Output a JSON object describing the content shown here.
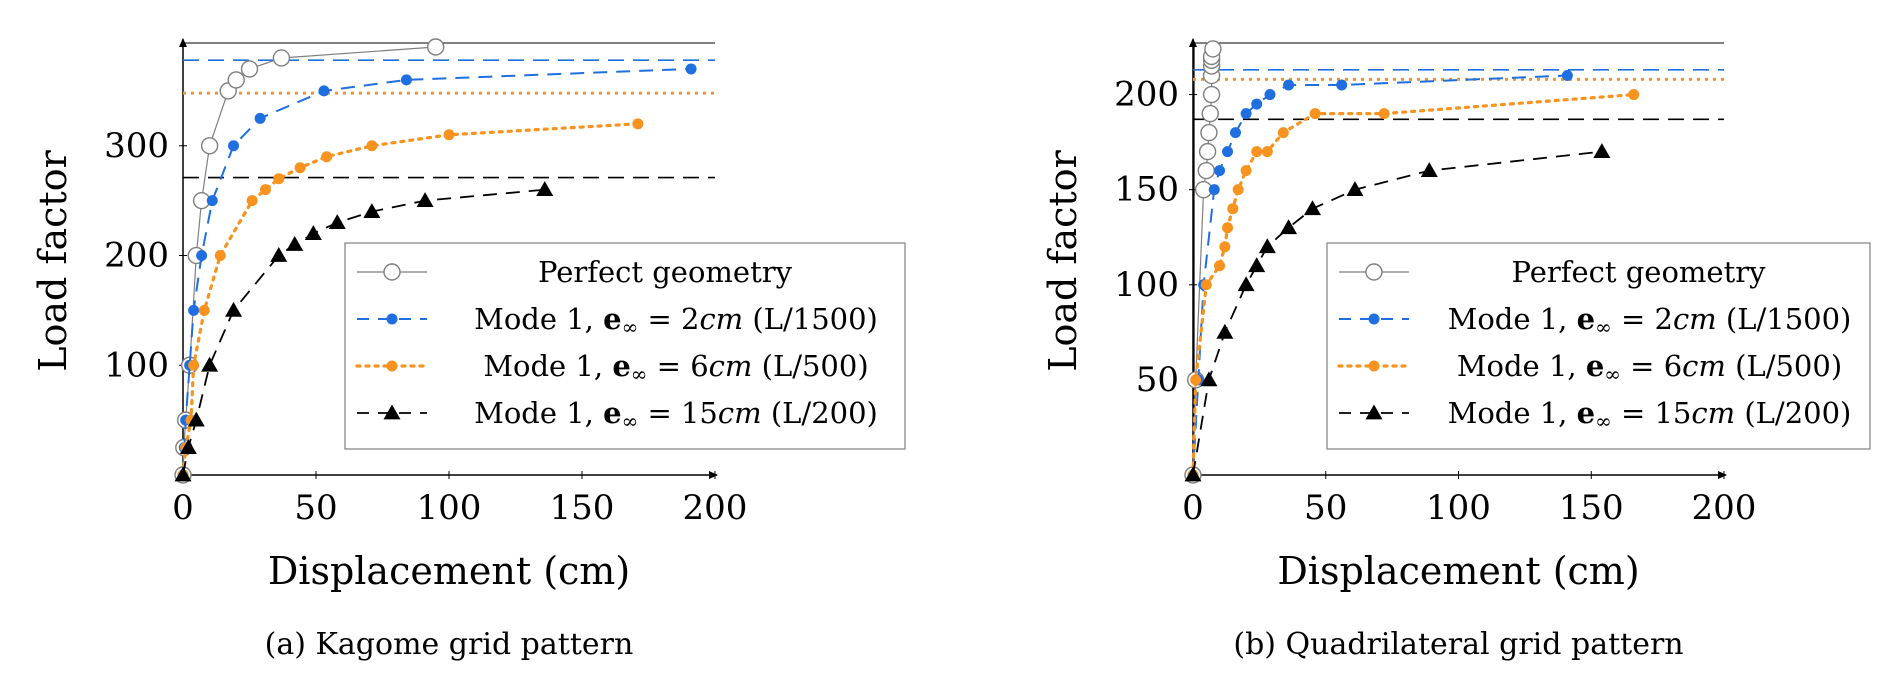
{
  "legend_labels": {
    "perfect": "Perfect geometry",
    "mode_prefix": "Mode 1,",
    "e_symbol": "e",
    "e_sub": "∞",
    "eq": "=",
    "unit": "cm"
  },
  "chart_data": [
    {
      "type": "line",
      "caption": "(a) Kagome grid pattern",
      "xlabel": "Displacement (cm)",
      "ylabel": "Load factor",
      "xlim": [
        0,
        200
      ],
      "ylim": [
        0,
        390
      ],
      "xticks": [
        0,
        50,
        100,
        150,
        200
      ],
      "yticks": [
        100,
        200,
        300
      ],
      "grid": false,
      "legend_position": "bottom-right",
      "series": [
        {
          "key": "perfect",
          "name": "Perfect geometry",
          "color": "#7f7f7f",
          "marker": "open-circle",
          "x": [
            0,
            0.3,
            1,
            2.5,
            5,
            7,
            10,
            17,
            20,
            25,
            37,
            95
          ],
          "y": [
            0,
            25,
            50,
            100,
            200,
            250,
            300,
            350,
            360,
            370,
            380,
            390
          ]
        },
        {
          "key": "e2",
          "name": "Mode 1, e∞ = 2cm (L/1500)",
          "value": "2",
          "ratio": "(L/1500)",
          "color": "#1f6fe0",
          "marker": "dot",
          "x": [
            0,
            0.5,
            1,
            2.5,
            4,
            7,
            11,
            19,
            29,
            53,
            84,
            191
          ],
          "y": [
            0,
            25,
            50,
            100,
            150,
            200,
            250,
            300,
            325,
            350,
            360,
            370
          ],
          "asymptote": 378
        },
        {
          "key": "e6",
          "name": "Mode 1, e∞ = 6cm (L/500)",
          "value": "6",
          "ratio": "(L/500)",
          "color": "#f7931e",
          "marker": "dot",
          "x": [
            0,
            1,
            3,
            4,
            8,
            14,
            26,
            31,
            36,
            44,
            54,
            71,
            100,
            171
          ],
          "y": [
            0,
            25,
            50,
            100,
            150,
            200,
            250,
            260,
            270,
            280,
            290,
            300,
            310,
            320
          ],
          "asymptote": 348
        },
        {
          "key": "e15",
          "name": "Mode 1, e∞ = 15cm (L/200)",
          "value": "15",
          "ratio": "(L/200)",
          "color": "#000000",
          "marker": "triangle",
          "x": [
            0,
            2,
            5,
            10,
            19,
            36,
            42,
            49,
            58,
            71,
            91,
            136
          ],
          "y": [
            0,
            25,
            50,
            100,
            150,
            200,
            210,
            220,
            230,
            240,
            250,
            260
          ],
          "asymptote": 271
        }
      ]
    },
    {
      "type": "line",
      "caption": "(b) Quadrilateral grid pattern",
      "xlabel": "Displacement (cm)",
      "ylabel": "Load factor",
      "xlim": [
        0,
        200
      ],
      "ylim": [
        0,
        225
      ],
      "xticks": [
        0,
        50,
        100,
        150,
        200
      ],
      "yticks": [
        50,
        100,
        150,
        200
      ],
      "grid": false,
      "legend_position": "bottom-right",
      "series": [
        {
          "key": "perfect",
          "name": "Perfect geometry",
          "color": "#7f7f7f",
          "marker": "open-circle",
          "x": [
            0,
            1,
            4,
            5,
            5.5,
            6,
            6.5,
            7,
            7,
            7,
            7,
            7,
            7.5
          ],
          "y": [
            0,
            50,
            150,
            160,
            170,
            180,
            190,
            200,
            210,
            215,
            218,
            220,
            224
          ],
          "vline": true
        },
        {
          "key": "e2",
          "name": "Mode 1, e∞ = 2cm (L/1500)",
          "value": "2",
          "ratio": "(L/1500)",
          "color": "#1f6fe0",
          "marker": "dot",
          "x": [
            0,
            2,
            4,
            8,
            10,
            13,
            16,
            20,
            24,
            29,
            36,
            56,
            141
          ],
          "y": [
            0,
            50,
            100,
            150,
            160,
            170,
            180,
            190,
            195,
            200,
            205,
            205,
            210
          ],
          "asymptote": 213
        },
        {
          "key": "e6",
          "name": "Mode 1, e∞ = 6cm (L/500)",
          "value": "6",
          "ratio": "(L/500)",
          "color": "#f7931e",
          "marker": "dot",
          "x": [
            0,
            1,
            5,
            10,
            12,
            13,
            15,
            17,
            20,
            24,
            28,
            34,
            46,
            72,
            166
          ],
          "y": [
            0,
            50,
            100,
            110,
            120,
            130,
            140,
            150,
            160,
            170,
            170,
            180,
            190,
            190,
            200
          ],
          "asymptote": 208
        },
        {
          "key": "e15",
          "name": "Mode 1, e∞ = 15cm (L/200)",
          "value": "15",
          "ratio": "(L/200)",
          "color": "#000000",
          "marker": "triangle",
          "x": [
            0,
            6,
            12,
            20,
            24,
            28,
            36,
            45,
            61,
            89,
            154
          ],
          "y": [
            0,
            50,
            75,
            100,
            110,
            120,
            130,
            140,
            150,
            160,
            170
          ],
          "asymptote": 187
        }
      ]
    }
  ]
}
